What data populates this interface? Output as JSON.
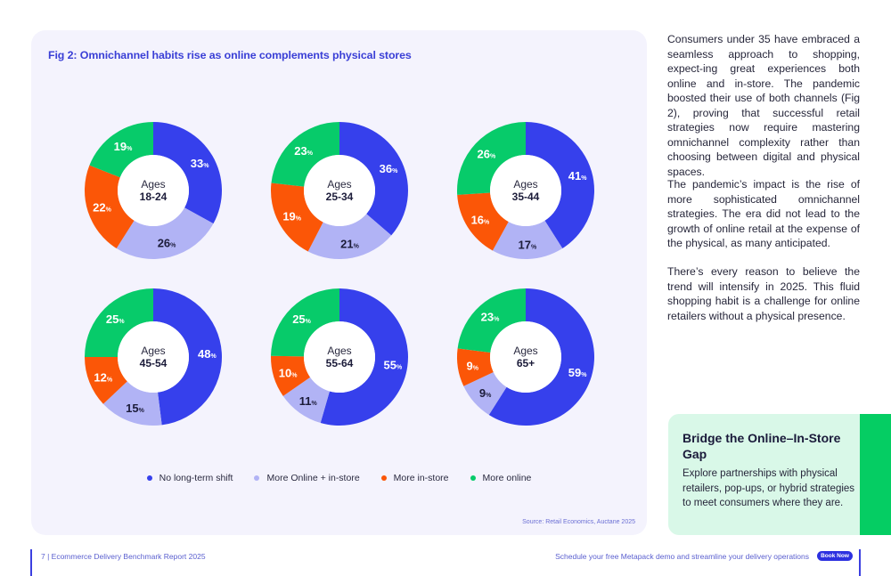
{
  "panel": {
    "title": "Fig 2: Omnichannel habits rise as online complements physical stores",
    "source": "Source: Retail Economics, Auctane 2025"
  },
  "chart_data": {
    "type": "pie",
    "variant": "donut",
    "title": "Fig 2: Omnichannel habits rise as online complements physical stores",
    "categories": [
      "No long-term shift",
      "More Online + in-store",
      "More in-store",
      "More online"
    ],
    "colors": [
      "#3640ec",
      "#b1b3f5",
      "#fb5607",
      "#07cb6a"
    ],
    "center_prefix": "Ages",
    "unit": "%",
    "legend_position": "bottom",
    "series": [
      {
        "name": "18-24",
        "values": [
          33,
          26,
          22,
          19
        ]
      },
      {
        "name": "25-34",
        "values": [
          36,
          21,
          19,
          23
        ]
      },
      {
        "name": "35-44",
        "values": [
          41,
          17,
          16,
          26
        ]
      },
      {
        "name": "45-54",
        "values": [
          48,
          15,
          12,
          25
        ]
      },
      {
        "name": "55-64",
        "values": [
          55,
          11,
          10,
          25
        ]
      },
      {
        "name": "65+",
        "values": [
          59,
          9,
          9,
          23
        ]
      }
    ]
  },
  "body": {
    "p1": "Consumers under 35 have embraced a seamless approach to shopping, expect-ing great experiences both online and in-store. The pandemic boosted their use of both channels (Fig 2), proving that successful retail strategies now require mastering omnichannel complexity rather than choosing between digital and physical spaces.",
    "p2": "The pandemic’s impact is the rise of more sophisticated omnichannel strategies. The era did not lead to the growth of online retail at the expense of the physical, as many anticipated.",
    "p3": "There’s every reason to believe the trend will intensify in 2025. This fluid shopping habit is a challenge for online retailers without a physical presence."
  },
  "callout": {
    "title": "Bridge the Online–In-Store Gap",
    "text": "Explore partnerships with physical retailers, pop-ups, or hybrid strategies to meet consumers where they are."
  },
  "footer": {
    "left": "7  |  Ecommerce Delivery Benchmark Report 2025",
    "right": "Schedule your free Metapack demo and streamline your delivery operations",
    "button": "Book Now"
  }
}
